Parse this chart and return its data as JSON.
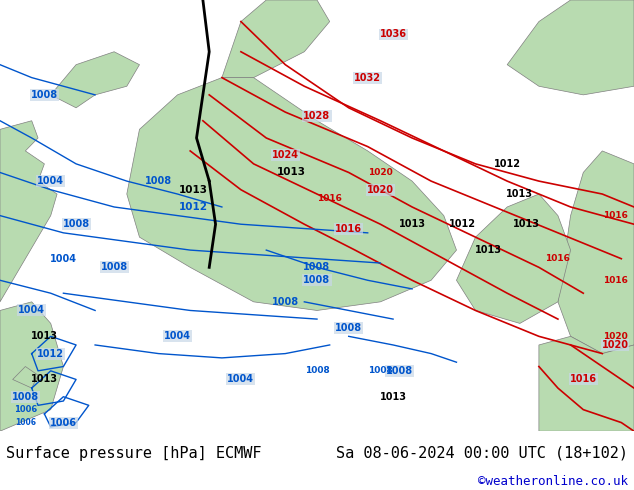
{
  "title_left": "Surface pressure [hPa] ECMWF",
  "title_right": "Sa 08-06-2024 00:00 UTC (18+102)",
  "watermark": "©weatheronline.co.uk",
  "bg_color": "#d0d8e8",
  "land_color": "#b8dbb0",
  "sea_color": "#c8d8e8",
  "bottom_bar_color": "#ffffff",
  "bottom_text_color": "#000000",
  "watermark_color": "#0000cc",
  "red_isobar_color": "#cc0000",
  "blue_isobar_color": "#0055cc",
  "black_isobar_color": "#000000",
  "figsize": [
    6.34,
    4.9
  ],
  "dpi": 100
}
